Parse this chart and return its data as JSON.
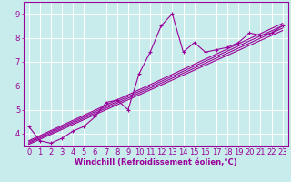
{
  "title": "",
  "xlabel": "Windchill (Refroidissement éolien,°C)",
  "ylabel": "",
  "background_color": "#c8ecec",
  "grid_color": "#aadddd",
  "line_color": "#990099",
  "ax_face_color": "#c8ecec",
  "fig_face_color": "#c8ecec",
  "xlim": [
    -0.5,
    23.5
  ],
  "ylim": [
    3.5,
    9.5
  ],
  "yticks": [
    4,
    5,
    6,
    7,
    8,
    9
  ],
  "xticks": [
    0,
    1,
    2,
    3,
    4,
    5,
    6,
    7,
    8,
    9,
    10,
    11,
    12,
    13,
    14,
    15,
    16,
    17,
    18,
    19,
    20,
    21,
    22,
    23
  ],
  "data_x": [
    0,
    1,
    2,
    3,
    4,
    5,
    6,
    7,
    8,
    9,
    10,
    11,
    12,
    13,
    14,
    15,
    16,
    17,
    18,
    19,
    20,
    21,
    22,
    23
  ],
  "data_y": [
    4.3,
    3.7,
    3.6,
    3.8,
    4.1,
    4.3,
    4.7,
    5.3,
    5.4,
    5.0,
    6.5,
    7.4,
    8.5,
    9.0,
    7.4,
    7.8,
    7.4,
    7.5,
    7.6,
    7.8,
    8.2,
    8.1,
    8.2,
    8.5
  ],
  "linear_lines": [
    [
      3.55,
      8.3
    ],
    [
      3.6,
      8.4
    ],
    [
      3.65,
      8.5
    ],
    [
      3.7,
      8.6
    ]
  ],
  "font_size_xlabel": 6,
  "font_size_ticks": 6,
  "tick_label_color": "#990099",
  "xlabel_color": "#990099",
  "spine_color": "#990099",
  "marker_size": 2.5,
  "linewidth": 0.8
}
